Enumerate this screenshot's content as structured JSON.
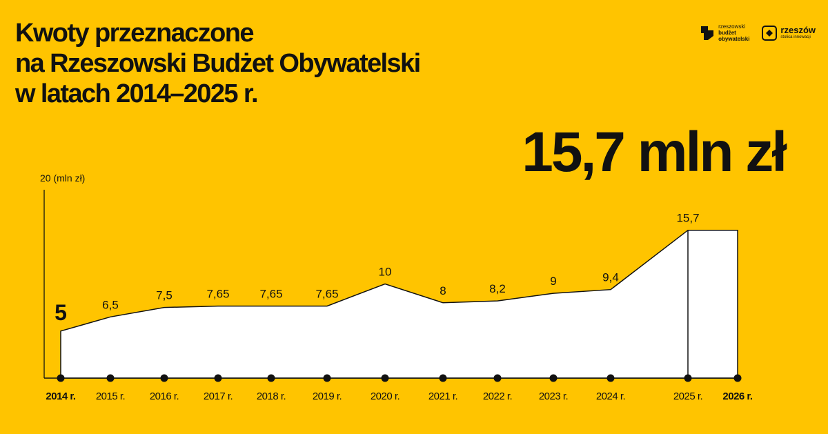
{
  "header": {
    "title_lines": [
      "Kwoty przeznaczone",
      "na Rzeszowski Budżet Obywatelski",
      "w latach 2014–2025 r."
    ],
    "highlight": "15,7 mln zł"
  },
  "logos": {
    "rbo": {
      "line1": "rzeszowski",
      "line2": "budżet",
      "line3": "obywatelski"
    },
    "rzeszow": {
      "name": "rzeszów",
      "tagline": "stolica innowacji"
    }
  },
  "chart_data": {
    "type": "area",
    "title": "Kwoty przeznaczone na Rzeszowski Budżet Obywatelski w latach 2014–2025 r.",
    "ylabel": "20 (mln zł)",
    "ylim": [
      0,
      20
    ],
    "grid": false,
    "x": [
      "2014 r.",
      "2015 r.",
      "2016 r.",
      "2017 r.",
      "2018 r.",
      "2019 r.",
      "2020 r.",
      "2021 r.",
      "2022 r.",
      "2023 r.",
      "2024 r.",
      "2025 r.",
      "2026 r."
    ],
    "bold_ticks": [
      "2014 r.",
      "2026 r."
    ],
    "series": [
      {
        "values": [
          5,
          6.5,
          7.5,
          7.65,
          7.65,
          7.65,
          10,
          8,
          8.2,
          9,
          9.4,
          15.7,
          15.7
        ],
        "labels": [
          "5",
          "6,5",
          "7,5",
          "7,65",
          "7,65",
          "7,65",
          "10",
          "8",
          "8,2",
          "9",
          "9,4",
          "15,7",
          ""
        ]
      }
    ],
    "colors": {
      "background": "#FFC400",
      "fill": "#FFFFFF",
      "line": "#111111"
    }
  }
}
